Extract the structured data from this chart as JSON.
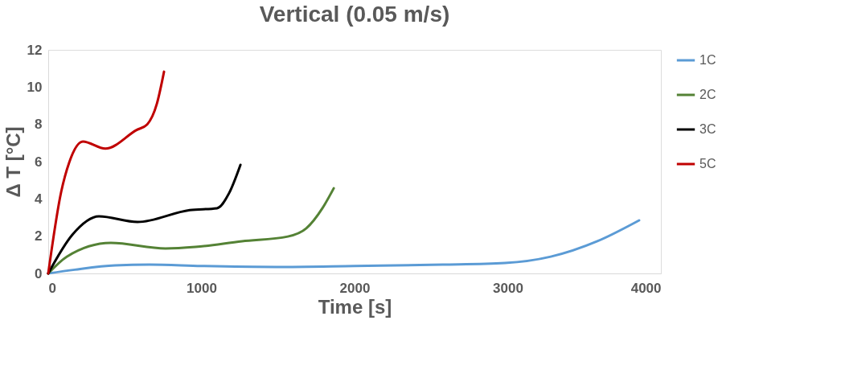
{
  "chart_data": {
    "type": "line",
    "title": "Vertical (0.05 m/s)",
    "xlabel": "Time [s]",
    "ylabel": "Δ T [°C]",
    "xlim": [
      0,
      4000
    ],
    "xticks": [
      0,
      1000,
      2000,
      3000,
      4000
    ],
    "ylim": [
      0,
      12
    ],
    "yticks": [
      0,
      2,
      4,
      6,
      8,
      10,
      12
    ],
    "grid": false,
    "legend": "right",
    "marker": "none",
    "line_style": "solid",
    "series": [
      {
        "name": "1C",
        "color": "#5b9bd5",
        "x": [
          0,
          173,
          436,
          661,
          1000,
          1486,
          2000,
          2577,
          2982,
          3281,
          3585,
          3858
        ],
        "values": [
          0,
          0.2,
          0.43,
          0.47,
          0.4,
          0.35,
          0.4,
          0.47,
          0.56,
          0.9,
          1.73,
          2.85
        ]
      },
      {
        "name": "2C",
        "color": "#548235",
        "x": [
          0,
          121,
          409,
          766,
          961,
          1265,
          1564,
          1685,
          1790,
          1864
        ],
        "values": [
          0,
          0.9,
          1.64,
          1.34,
          1.42,
          1.73,
          1.98,
          2.42,
          3.5,
          4.57
        ]
      },
      {
        "name": "3C",
        "color": "#000000",
        "x": [
          0,
          157,
          331,
          583,
          924,
          1102,
          1180,
          1255
        ],
        "values": [
          0,
          2.07,
          3.06,
          2.76,
          3.4,
          3.5,
          4.3,
          5.83
        ]
      },
      {
        "name": "5C",
        "color": "#c00000",
        "x": [
          0,
          84,
          137,
          226,
          373,
          577,
          646,
          709,
          756
        ],
        "values": [
          0,
          4.36,
          5.96,
          7.08,
          6.7,
          7.7,
          8.0,
          9.1,
          10.83
        ]
      }
    ]
  }
}
